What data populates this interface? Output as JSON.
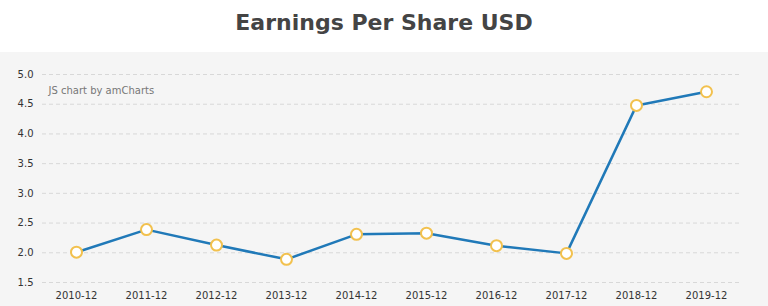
{
  "chart_data": {
    "type": "line",
    "title": "Earnings Per Share USD",
    "annotations": [
      "JS chart by amCharts"
    ],
    "categories": [
      "2010-12",
      "2011-12",
      "2012-12",
      "2013-12",
      "2014-12",
      "2015-12",
      "2016-12",
      "2017-12",
      "2018-12",
      "2019-12"
    ],
    "values": [
      2.01,
      2.39,
      2.13,
      1.89,
      2.31,
      2.33,
      2.12,
      1.99,
      4.48,
      4.71
    ],
    "color": "#2079b8",
    "marker": "circle",
    "ylim": [
      1.5,
      5.0
    ],
    "yticks": [
      1.5,
      {
        "value": 2,
        "label": "2.0"
      },
      2.5,
      {
        "value": 3,
        "label": "3.0"
      },
      3.5,
      {
        "value": 4,
        "label": "4.0"
      },
      4.5,
      {
        "value": 5,
        "label": "5.0"
      }
    ],
    "grid": true
  }
}
